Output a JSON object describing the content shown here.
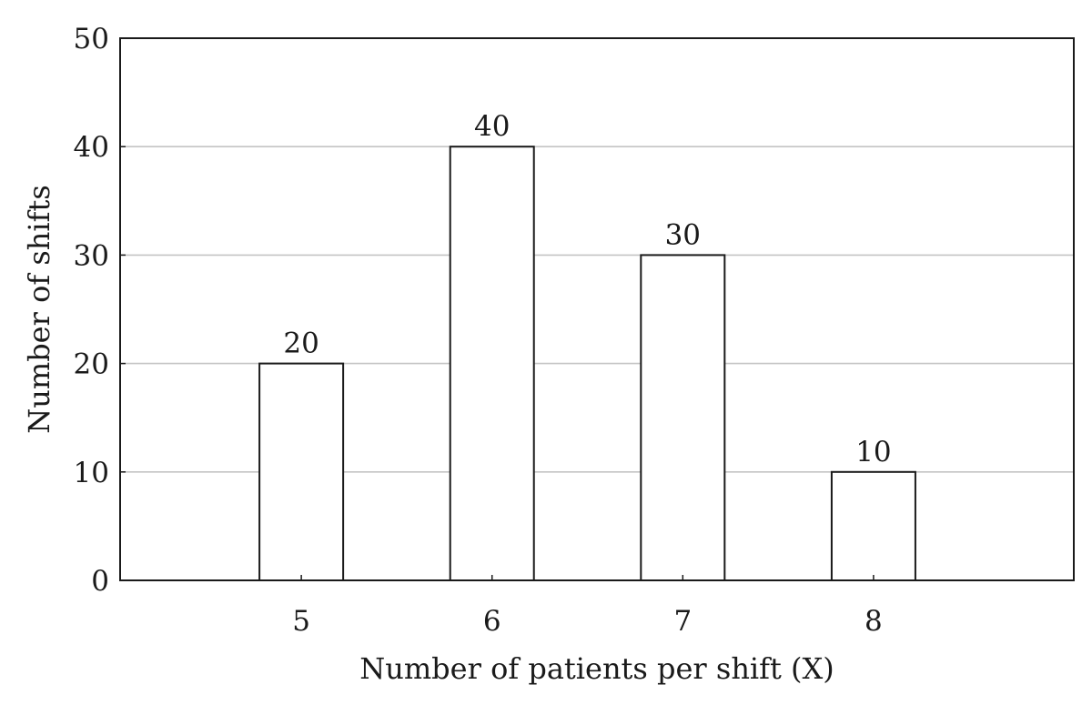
{
  "chart_data": {
    "type": "bar",
    "categories": [
      "5",
      "6",
      "7",
      "8"
    ],
    "values": [
      20,
      40,
      30,
      10
    ],
    "data_labels": [
      "20",
      "40",
      "30",
      "10"
    ],
    "xlabel": "Number of patients per shift (X)",
    "ylabel": "Number of shifts",
    "ylim": [
      0,
      50
    ],
    "yticks": [
      0,
      10,
      20,
      30,
      40,
      50
    ],
    "ytick_labels": [
      "0",
      "10",
      "20",
      "30",
      "40",
      "50"
    ],
    "x_range": [
      4.05,
      9.05
    ],
    "grid": true,
    "legend": "none",
    "colors": {
      "bar_fill": "#ffffff",
      "bar_edge": "#1a1a1a",
      "grid": "#c4c4c4",
      "text": "#1a1a1a"
    }
  }
}
